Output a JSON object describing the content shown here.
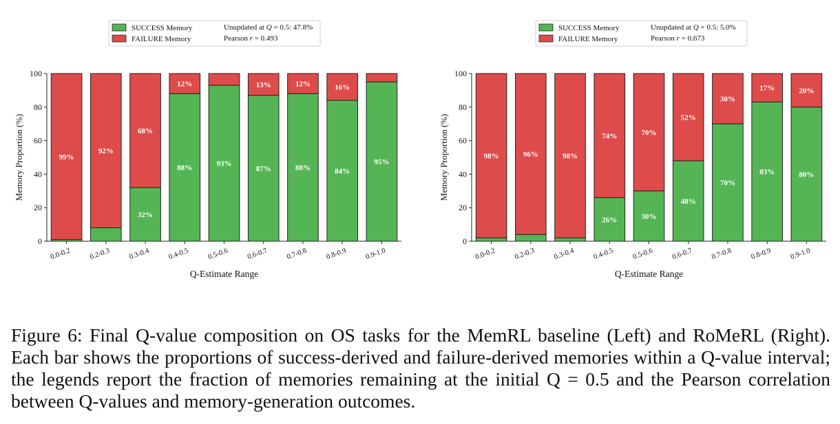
{
  "chart_data": [
    {
      "type": "bar",
      "stacked": true,
      "panel": "Left",
      "categories": [
        "0.0-0.2",
        "0.2-0.3",
        "0.3-0.4",
        "0.4-0.5",
        "0.5-0.6",
        "0.6-0.7",
        "0.7-0.8",
        "0.8-0.9",
        "0.9-1.0"
      ],
      "series": [
        {
          "name": "SUCCESS Memory",
          "color": "#55b555",
          "values": [
            1,
            8,
            32,
            88,
            93,
            87,
            88,
            84,
            95
          ]
        },
        {
          "name": "FAILURE Memory",
          "color": "#dd4c4a",
          "values": [
            99,
            92,
            68,
            12,
            7,
            13,
            12,
            16,
            5
          ]
        }
      ],
      "labels": {
        "success": [
          "",
          "",
          "32%",
          "88%",
          "93%",
          "87%",
          "88%",
          "84%",
          "95%"
        ],
        "failure": [
          "99%",
          "92%",
          "68%",
          "12%",
          "",
          "13%",
          "12%",
          "16%",
          ""
        ]
      },
      "legend_stats": {
        "unupdated_prefix": "Unupdated at",
        "unupdated_q": "Q",
        "unupdated_value": " = 0.5: 47.8%",
        "pearson_prefix": "Pearson",
        "pearson_r": "r",
        "pearson_value": " = 0.493"
      },
      "legend_placement": "top",
      "xlabel": "Q-Estimate Range",
      "ylabel": "Memory Proportion (%)",
      "yticks": [
        "0",
        "20",
        "40",
        "60",
        "80",
        "100"
      ],
      "ylim": [
        0,
        100
      ],
      "grid": false
    },
    {
      "type": "bar",
      "stacked": true,
      "panel": "Right",
      "categories": [
        "0.0-0.2",
        "0.2-0.3",
        "0.3-0.4",
        "0.4-0.5",
        "0.5-0.6",
        "0.6-0.7",
        "0.7-0.8",
        "0.8-0.9",
        "0.9-1.0"
      ],
      "series": [
        {
          "name": "SUCCESS Memory",
          "color": "#55b555",
          "values": [
            2,
            4,
            2,
            26,
            30,
            48,
            70,
            83,
            80
          ]
        },
        {
          "name": "FAILURE Memory",
          "color": "#dd4c4a",
          "values": [
            98,
            96,
            98,
            74,
            70,
            52,
            30,
            17,
            20
          ]
        }
      ],
      "labels": {
        "success": [
          "",
          "",
          "",
          "26%",
          "30%",
          "48%",
          "70%",
          "83%",
          "80%"
        ],
        "failure": [
          "98%",
          "96%",
          "98%",
          "74%",
          "70%",
          "52%",
          "30%",
          "17%",
          "20%"
        ]
      },
      "legend_stats": {
        "unupdated_prefix": "Unupdated at",
        "unupdated_q": "Q",
        "unupdated_value": " = 0.5: 5.0%",
        "pearson_prefix": "Pearson",
        "pearson_r": "r",
        "pearson_value": " = 0.673"
      },
      "legend_placement": "top",
      "xlabel": "Q-Estimate Range",
      "ylabel": "Memory Proportion (%)",
      "yticks": [
        "0",
        "20",
        "40",
        "60",
        "80",
        "100"
      ],
      "ylim": [
        0,
        100
      ],
      "grid": false
    }
  ],
  "caption": "Figure 6: Final Q-value composition on OS tasks for the MemRL baseline (Left) and RoMeRL (Right). Each bar shows the proportions of success-derived and failure-derived memories within a Q-value interval; the legends report the fraction of memories remaining at the initial Q = 0.5 and the Pearson correlation between Q-values and memory-generation outcomes."
}
